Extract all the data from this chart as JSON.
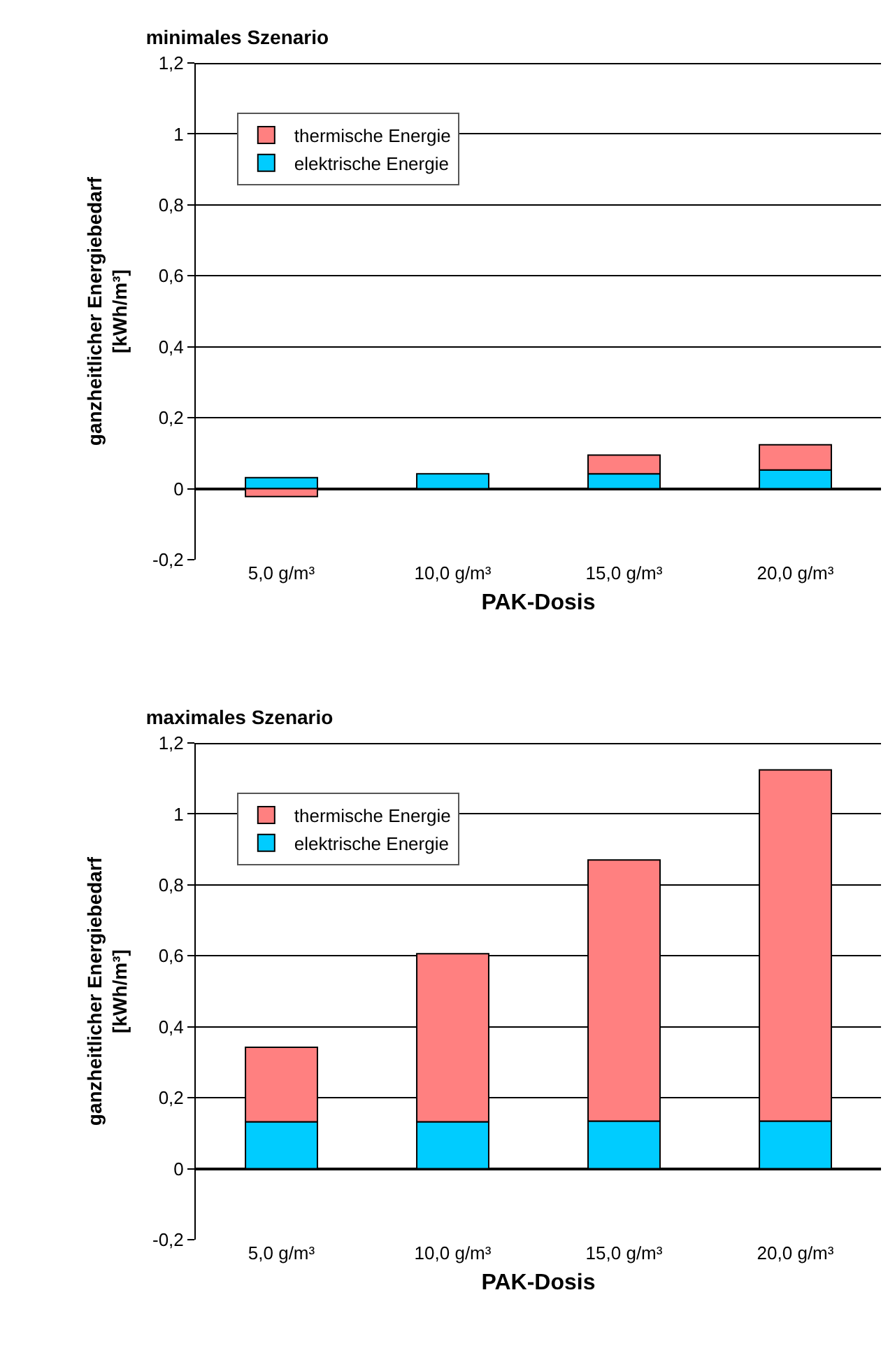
{
  "chart_data": [
    {
      "type": "bar",
      "title": "minimales Szenario",
      "xlabel": "PAK-Dosis",
      "ylabel": "ganzheitlicher Energiebedarf\n[kWh/m³]",
      "categories": [
        "5,0 g/m³",
        "10,0 g/m³",
        "15,0 g/m³",
        "20,0 g/m³"
      ],
      "stacked": true,
      "series": [
        {
          "name": "elektrische Energie",
          "color": "#00ccff",
          "values": [
            0.031,
            0.042,
            0.042,
            0.053
          ]
        },
        {
          "name": "thermische Energie",
          "color": "#ff8080",
          "values": [
            -0.022,
            null,
            0.053,
            0.071
          ]
        }
      ],
      "ylim": [
        -0.2,
        1.2
      ],
      "yticks": [
        {
          "value": -0.2,
          "label": "-0,2"
        },
        {
          "value": 0,
          "label": "0"
        },
        {
          "value": 0.2,
          "label": "0,2"
        },
        {
          "value": 0.4,
          "label": "0,4"
        },
        {
          "value": 0.6,
          "label": "0,6"
        },
        {
          "value": 0.8,
          "label": "0,8"
        },
        {
          "value": 1,
          "label": "1"
        },
        {
          "value": 1.2,
          "label": "1,2"
        }
      ],
      "grid": "y",
      "legend": "top left"
    },
    {
      "type": "bar",
      "title": "maximales Szenario",
      "xlabel": "PAK-Dosis",
      "ylabel": "ganzheitlicher Energiebedarf\n[kWh/m³]",
      "categories": [
        "5,0 g/m³",
        "10,0 g/m³",
        "15,0 g/m³",
        "20,0 g/m³"
      ],
      "stacked": true,
      "series": [
        {
          "name": "elektrische Energie",
          "color": "#00ccff",
          "values": [
            0.132,
            0.132,
            0.134,
            0.134
          ]
        },
        {
          "name": "thermische Energie",
          "color": "#ff8080",
          "values": [
            0.21,
            0.474,
            0.736,
            0.99
          ]
        }
      ],
      "ylim": [
        -0.2,
        1.2
      ],
      "yticks": [
        {
          "value": -0.2,
          "label": "-0,2"
        },
        {
          "value": 0,
          "label": "0"
        },
        {
          "value": 0.2,
          "label": "0,2"
        },
        {
          "value": 0.4,
          "label": "0,4"
        },
        {
          "value": 0.6,
          "label": "0,6"
        },
        {
          "value": 0.8,
          "label": "0,8"
        },
        {
          "value": 1,
          "label": "1"
        },
        {
          "value": 1.2,
          "label": "1,2"
        }
      ],
      "grid": "y",
      "legend": "top left"
    }
  ]
}
